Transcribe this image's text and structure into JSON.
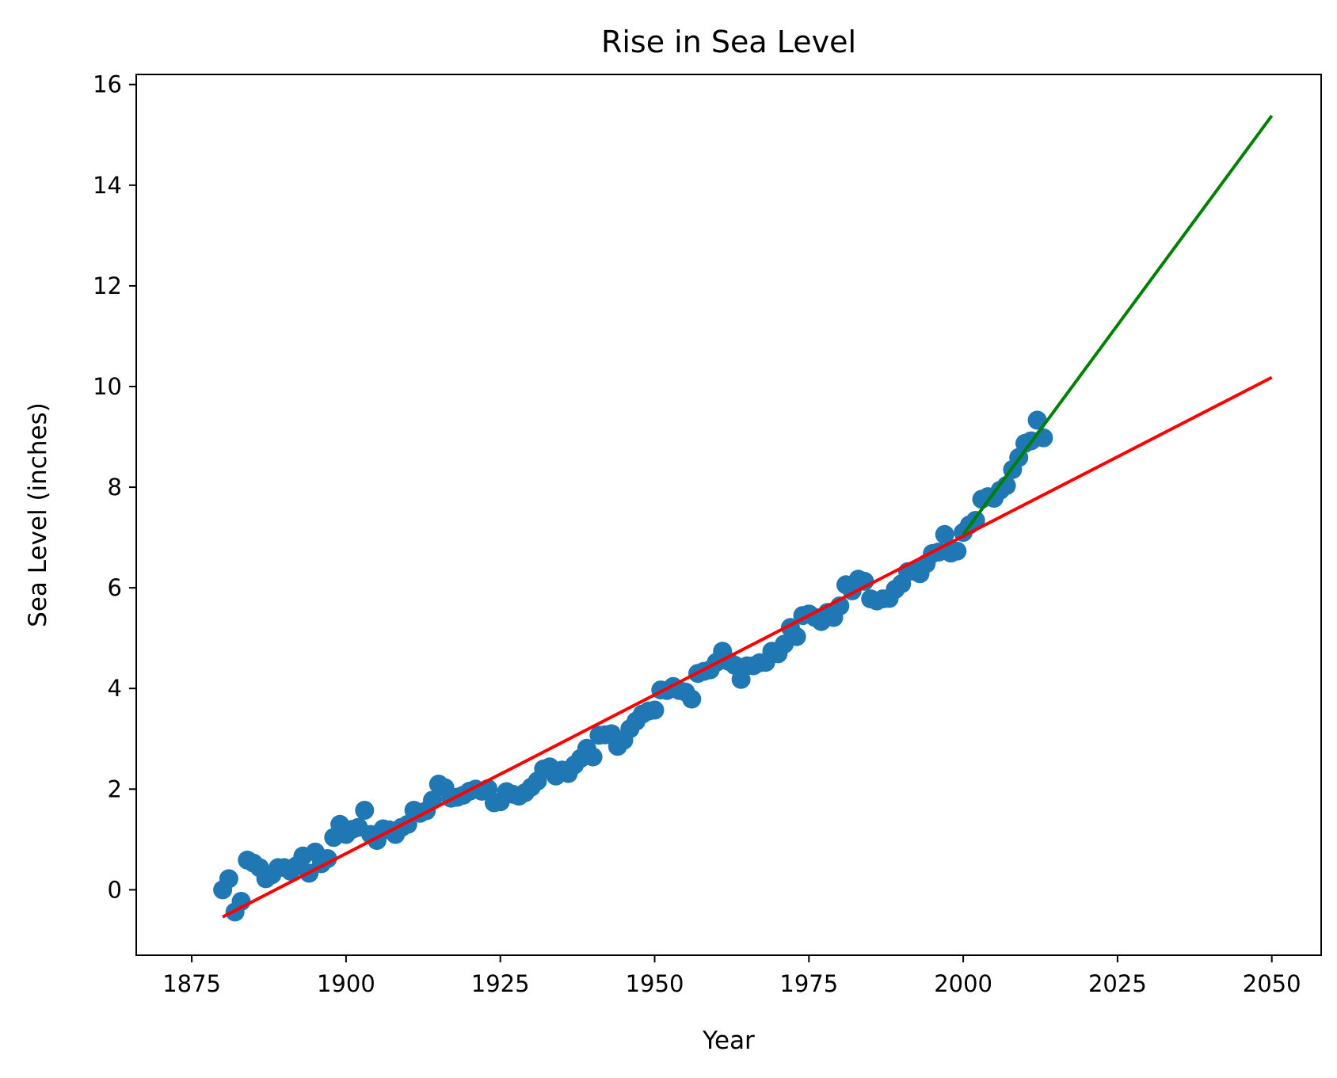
{
  "chart_data": {
    "type": "scatter",
    "title": "Rise in Sea Level",
    "xlabel": "Year",
    "ylabel": "Sea Level (inches)",
    "xlim": [
      1866,
      2058
    ],
    "ylim": [
      -1.3,
      16.2
    ],
    "x_ticks": [
      1875,
      1900,
      1925,
      1950,
      1975,
      2000,
      2025,
      2050
    ],
    "y_ticks": [
      0,
      2,
      4,
      6,
      8,
      10,
      12,
      14,
      16
    ],
    "grid": false,
    "legend": "none",
    "colors": {
      "points": "#1f77b4",
      "fit_all": "#ff0000",
      "fit_recent": "#008000",
      "axes": "#000000"
    },
    "series": [
      {
        "type": "scatter",
        "x": [
          1880,
          1881,
          1882,
          1883,
          1884,
          1885,
          1886,
          1887,
          1888,
          1889,
          1890,
          1891,
          1892,
          1893,
          1894,
          1895,
          1896,
          1897,
          1898,
          1899,
          1900,
          1901,
          1902,
          1903,
          1904,
          1905,
          1906,
          1907,
          1908,
          1909,
          1910,
          1911,
          1912,
          1913,
          1914,
          1915,
          1916,
          1917,
          1918,
          1919,
          1920,
          1921,
          1922,
          1923,
          1924,
          1925,
          1926,
          1927,
          1928,
          1929,
          1930,
          1931,
          1932,
          1933,
          1934,
          1935,
          1936,
          1937,
          1938,
          1939,
          1940,
          1941,
          1942,
          1943,
          1944,
          1945,
          1946,
          1947,
          1948,
          1949,
          1950,
          1951,
          1952,
          1953,
          1954,
          1955,
          1956,
          1957,
          1958,
          1959,
          1960,
          1961,
          1962,
          1963,
          1964,
          1965,
          1966,
          1967,
          1968,
          1969,
          1970,
          1971,
          1972,
          1973,
          1974,
          1975,
          1976,
          1977,
          1978,
          1979,
          1980,
          1981,
          1982,
          1983,
          1984,
          1985,
          1986,
          1987,
          1988,
          1989,
          1990,
          1991,
          1992,
          1993,
          1994,
          1995,
          1996,
          1997,
          1998,
          1999,
          2000,
          2001,
          2002,
          2003,
          2004,
          2005,
          2006,
          2007,
          2008,
          2009,
          2010,
          2011,
          2012,
          2013
        ],
        "y": [
          0.0,
          0.22,
          -0.44,
          -0.23,
          0.59,
          0.53,
          0.44,
          0.22,
          0.3,
          0.44,
          0.44,
          0.37,
          0.48,
          0.67,
          0.33,
          0.75,
          0.52,
          0.62,
          1.04,
          1.3,
          1.1,
          1.2,
          1.24,
          1.58,
          1.1,
          0.98,
          1.21,
          1.19,
          1.1,
          1.24,
          1.3,
          1.58,
          1.52,
          1.57,
          1.78,
          2.1,
          2.03,
          1.82,
          1.84,
          1.88,
          1.96,
          2.0,
          1.96,
          2.01,
          1.73,
          1.75,
          1.95,
          1.9,
          1.86,
          1.93,
          2.04,
          2.16,
          2.4,
          2.44,
          2.26,
          2.38,
          2.31,
          2.48,
          2.61,
          2.81,
          2.64,
          3.07,
          3.08,
          3.1,
          2.85,
          2.97,
          3.2,
          3.35,
          3.49,
          3.55,
          3.57,
          3.97,
          3.96,
          4.04,
          3.96,
          3.93,
          3.79,
          4.3,
          4.34,
          4.37,
          4.52,
          4.74,
          4.54,
          4.46,
          4.18,
          4.45,
          4.45,
          4.51,
          4.52,
          4.74,
          4.69,
          4.88,
          5.21,
          5.03,
          5.45,
          5.48,
          5.41,
          5.33,
          5.51,
          5.41,
          5.64,
          6.06,
          5.94,
          6.17,
          6.13,
          5.78,
          5.74,
          5.78,
          5.79,
          5.97,
          6.08,
          6.32,
          6.33,
          6.28,
          6.48,
          6.68,
          6.71,
          7.06,
          6.69,
          6.73,
          7.1,
          7.25,
          7.34,
          7.76,
          7.81,
          7.78,
          7.94,
          8.03,
          8.35,
          8.59,
          8.87,
          8.92,
          9.33,
          8.98
        ]
      },
      {
        "type": "line",
        "x": [
          1880,
          2050
        ],
        "y": [
          -0.54,
          10.18
        ]
      },
      {
        "type": "line",
        "x": [
          2000,
          2050
        ],
        "y": [
          7.06,
          15.38
        ]
      }
    ]
  }
}
